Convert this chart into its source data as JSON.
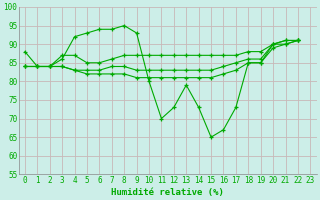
{
  "xlabel": "Humidité relative (%)",
  "bg_color": "#cceee8",
  "grid_color": "#c8b8b8",
  "line_color": "#00aa00",
  "xlim": [
    -0.5,
    23.5
  ],
  "ylim": [
    55,
    100
  ],
  "yticks": [
    55,
    60,
    65,
    70,
    75,
    80,
    85,
    90,
    95,
    100
  ],
  "xticks": [
    0,
    1,
    2,
    3,
    4,
    5,
    6,
    7,
    8,
    9,
    10,
    11,
    12,
    13,
    14,
    15,
    16,
    17,
    18,
    19,
    20,
    21,
    22,
    23
  ],
  "series": [
    [
      88,
      84,
      84,
      86,
      92,
      93,
      94,
      94,
      95,
      93,
      80,
      70,
      73,
      79,
      73,
      65,
      67,
      73,
      85,
      85,
      90,
      91,
      91
    ],
    [
      84,
      84,
      84,
      87,
      87,
      85,
      85,
      86,
      87,
      87,
      87,
      87,
      87,
      87,
      87,
      87,
      87,
      87,
      88,
      88,
      90,
      91,
      91
    ],
    [
      84,
      84,
      84,
      84,
      83,
      83,
      83,
      84,
      84,
      83,
      83,
      83,
      83,
      83,
      83,
      83,
      84,
      85,
      86,
      86,
      90,
      90,
      91
    ],
    [
      84,
      84,
      84,
      84,
      83,
      82,
      82,
      82,
      82,
      81,
      81,
      81,
      81,
      81,
      81,
      81,
      82,
      83,
      85,
      85,
      89,
      90,
      91
    ]
  ],
  "figwidth": 3.2,
  "figheight": 2.0,
  "dpi": 100
}
